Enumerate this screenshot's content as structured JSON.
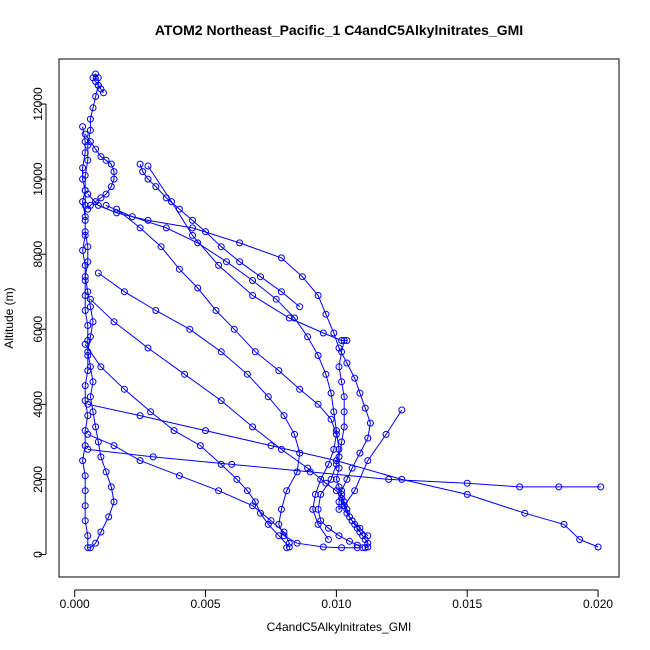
{
  "chart_data": {
    "type": "line",
    "title": "ATOM2 Northeast_Pacific_1 C4andC5Alkylnitrates_GMI",
    "xlabel": "C4andC5Alkylnitrates_GMI",
    "ylabel": "Altitude (m)",
    "xlim": [
      -0.0006,
      0.0208
    ],
    "ylim": [
      -600,
      13200
    ],
    "xticks": [
      0.0,
      0.005,
      0.01,
      0.015,
      0.02
    ],
    "xtick_labels": [
      "0.000",
      "0.005",
      "0.010",
      "0.015",
      "0.020"
    ],
    "yticks": [
      0,
      2000,
      4000,
      6000,
      8000,
      10000,
      12000
    ],
    "ytick_labels": [
      "0",
      "2000",
      "4000",
      "6000",
      "8000",
      "10000",
      "12000"
    ],
    "marker": "open-circle",
    "grid": false,
    "legend": "none",
    "color": "#0000ff",
    "series": [
      {
        "x": [
          0.0003,
          0.0004,
          0.0004,
          0.0003,
          0.0003,
          0.0004,
          0.0003,
          0.0004,
          0.0004,
          0.0005,
          0.0005,
          0.0004,
          0.0005,
          0.0006,
          0.0007,
          0.0006,
          0.0005,
          0.0006,
          0.0007,
          0.0006,
          0.0007,
          0.0008,
          0.0009,
          0.001,
          0.0012,
          0.0014,
          0.0015,
          0.0013,
          0.001,
          0.0008,
          0.0006,
          0.0005,
          0.0005,
          0.0004,
          0.0004,
          0.0004,
          0.0004,
          0.0003,
          0.0004,
          0.0004,
          0.0005,
          0.0004,
          0.0004,
          0.0005,
          0.0005,
          0.0005,
          0.0005,
          0.0004,
          0.0004,
          0.0004,
          0.0004,
          0.0003,
          0.0004,
          0.0004,
          0.0004,
          0.0004,
          0.0004,
          0.0005,
          0.0005,
          0.0006,
          0.0006,
          0.0007,
          0.0008,
          0.0009,
          0.0009,
          0.0008,
          0.0007,
          0.0008,
          0.0009,
          0.001,
          0.0011
        ],
        "y": [
          11400,
          11000,
          10700,
          10300,
          10000,
          9700,
          9400,
          9000,
          8600,
          8200,
          7800,
          7400,
          7000,
          6600,
          6200,
          5800,
          5400,
          5000,
          4600,
          4200,
          3800,
          3400,
          3000,
          2600,
          2200,
          1800,
          1400,
          1000,
          600,
          300,
          180,
          180,
          500,
          900,
          1300,
          1700,
          2100,
          2500,
          2900,
          3300,
          3700,
          4100,
          4500,
          4900,
          5300,
          5700,
          6100,
          6500,
          6900,
          7300,
          7700,
          8100,
          8500,
          8900,
          9300,
          9700,
          10100,
          10500,
          10900,
          11300,
          11600,
          11900,
          12200,
          12500,
          12700,
          12800,
          12700,
          12600,
          12500,
          12400,
          12300
        ]
      },
      {
        "x": [
          0.0028,
          0.0037,
          0.0045,
          0.0055,
          0.0068,
          0.0082,
          0.0095,
          0.0102,
          0.0104,
          0.0103,
          0.0102,
          0.0101,
          0.0102,
          0.0103,
          0.0103,
          0.0103,
          0.0102,
          0.0101,
          0.0101,
          0.01,
          0.0101,
          0.0102,
          0.0103,
          0.0104,
          0.0105,
          0.0106,
          0.0107,
          0.0108,
          0.0109,
          0.011,
          0.0111,
          0.0112,
          0.0112,
          0.0111
        ],
        "y": [
          10350,
          9400,
          8500,
          7700,
          6900,
          6300,
          5900,
          5700,
          5700,
          5700,
          5400,
          5000,
          4600,
          4200,
          3800,
          3400,
          3000,
          2600,
          2300,
          2000,
          1800,
          1600,
          1400,
          1200,
          1000,
          900,
          800,
          700,
          600,
          500,
          400,
          300,
          200,
          180
        ]
      },
      {
        "x": [
          0.0005,
          0.0009,
          0.0016,
          0.0028,
          0.0045,
          0.0063,
          0.0079,
          0.0087,
          0.0093,
          0.0096,
          0.0099,
          0.0101,
          0.0104,
          0.0107,
          0.0109,
          0.0111,
          0.0113,
          0.0112,
          0.0109,
          0.0106,
          0.0104,
          0.0102,
          0.0101,
          0.0101,
          0.0103,
          0.0107,
          0.0112,
          0.0119,
          0.0125
        ],
        "y": [
          9600,
          9300,
          9100,
          8900,
          8700,
          8300,
          7900,
          7400,
          6900,
          6400,
          5900,
          5500,
          5100,
          4700,
          4300,
          3900,
          3500,
          3100,
          2700,
          2300,
          2000,
          1700,
          1400,
          1200,
          1300,
          1700,
          2500,
          3200,
          3850
        ]
      },
      {
        "x": [
          0.0012,
          0.0022,
          0.0035,
          0.0047,
          0.0058,
          0.0068,
          0.0077,
          0.0084,
          0.0089,
          0.0093,
          0.0096,
          0.0098,
          0.0099,
          0.01,
          0.0101,
          0.01,
          0.0098,
          0.0094,
          0.0093,
          0.0094,
          0.0097,
          0.0101,
          0.0105,
          0.0108,
          0.011
        ],
        "y": [
          9300,
          9000,
          8700,
          8300,
          7800,
          7300,
          6800,
          6300,
          5800,
          5300,
          4800,
          4300,
          3800,
          3300,
          2800,
          2400,
          2000,
          1600,
          1200,
          900,
          700,
          500,
          350,
          250,
          180
        ]
      },
      {
        "x": [
          0.0016,
          0.0025,
          0.0033,
          0.004,
          0.0047,
          0.0054,
          0.0061,
          0.0069,
          0.0078,
          0.0086,
          0.0093,
          0.0098,
          0.01,
          0.0099,
          0.0097,
          0.0094,
          0.0092,
          0.0091,
          0.0093,
          0.0097
        ],
        "y": [
          9200,
          8700,
          8200,
          7600,
          7100,
          6500,
          6000,
          5400,
          4900,
          4400,
          4000,
          3600,
          3200,
          2800,
          2400,
          2000,
          1600,
          1200,
          800,
          400
        ]
      },
      {
        "x": [
          0.0009,
          0.0019,
          0.0031,
          0.0044,
          0.0056,
          0.0066,
          0.0074,
          0.008,
          0.0084,
          0.0086,
          0.0085,
          0.0081,
          0.0079,
          0.0078,
          0.008,
          0.0085,
          0.0095,
          0.0102,
          0.0108
        ],
        "y": [
          7500,
          7000,
          6500,
          6000,
          5400,
          4800,
          4200,
          3700,
          3200,
          2700,
          2200,
          1700,
          1200,
          800,
          500,
          300,
          200,
          180,
          180
        ]
      },
      {
        "x": [
          0.0006,
          0.0015,
          0.0028,
          0.0042,
          0.0056,
          0.0068,
          0.0079,
          0.0089,
          0.0096,
          0.01,
          0.0102,
          0.0103,
          0.0104,
          0.0106,
          0.0109,
          0.0112
        ],
        "y": [
          6800,
          6200,
          5500,
          4800,
          4100,
          3400,
          2800,
          2300,
          1900,
          1700,
          1500,
          1300,
          1100,
          900,
          700,
          500
        ]
      },
      {
        "x": [
          0.0004,
          0.001,
          0.0019,
          0.0029,
          0.0038,
          0.0048,
          0.0056,
          0.0062,
          0.0066,
          0.0069,
          0.0071,
          0.0074,
          0.0078,
          0.0082
        ],
        "y": [
          5600,
          5000,
          4400,
          3800,
          3300,
          2900,
          2400,
          2000,
          1700,
          1400,
          1100,
          800,
          500,
          200
        ]
      },
      {
        "x": [
          0.0005,
          0.0025,
          0.005,
          0.0075,
          0.01,
          0.0125,
          0.015,
          0.0172,
          0.0187,
          0.0193,
          0.02
        ],
        "y": [
          4000,
          3700,
          3300,
          2900,
          2500,
          2000,
          1600,
          1100,
          800,
          400,
          200
        ]
      },
      {
        "x": [
          0.0005,
          0.003,
          0.006,
          0.009,
          0.012,
          0.015,
          0.017,
          0.0185,
          0.0201
        ],
        "y": [
          2800,
          2600,
          2400,
          2200,
          2000,
          1900,
          1800,
          1800,
          1800
        ]
      },
      {
        "x": [
          0.0005,
          0.0015,
          0.0025,
          0.004,
          0.0055,
          0.0068,
          0.0075,
          0.008,
          0.0082,
          0.0081
        ],
        "y": [
          3200,
          2900,
          2500,
          2100,
          1700,
          1300,
          900,
          600,
          300,
          180
        ]
      },
      {
        "x": [
          0.0004,
          0.0006,
          0.0008,
          0.001,
          0.0012,
          0.0014,
          0.0015,
          0.0015,
          0.0014,
          0.0012,
          0.001,
          0.0008,
          0.0006,
          0.0005
        ],
        "y": [
          11200,
          11000,
          10800,
          10600,
          10500,
          10400,
          10200,
          10000,
          9800,
          9600,
          9500,
          9400,
          9300,
          9200
        ]
      },
      {
        "x": [
          0.0025,
          0.0026,
          0.0028,
          0.0031,
          0.0035,
          0.004,
          0.0045,
          0.005,
          0.0056,
          0.0063,
          0.0071,
          0.0079,
          0.0086
        ],
        "y": [
          10400,
          10200,
          10000,
          9800,
          9500,
          9200,
          8900,
          8600,
          8200,
          7800,
          7400,
          7000,
          6600
        ]
      }
    ]
  }
}
